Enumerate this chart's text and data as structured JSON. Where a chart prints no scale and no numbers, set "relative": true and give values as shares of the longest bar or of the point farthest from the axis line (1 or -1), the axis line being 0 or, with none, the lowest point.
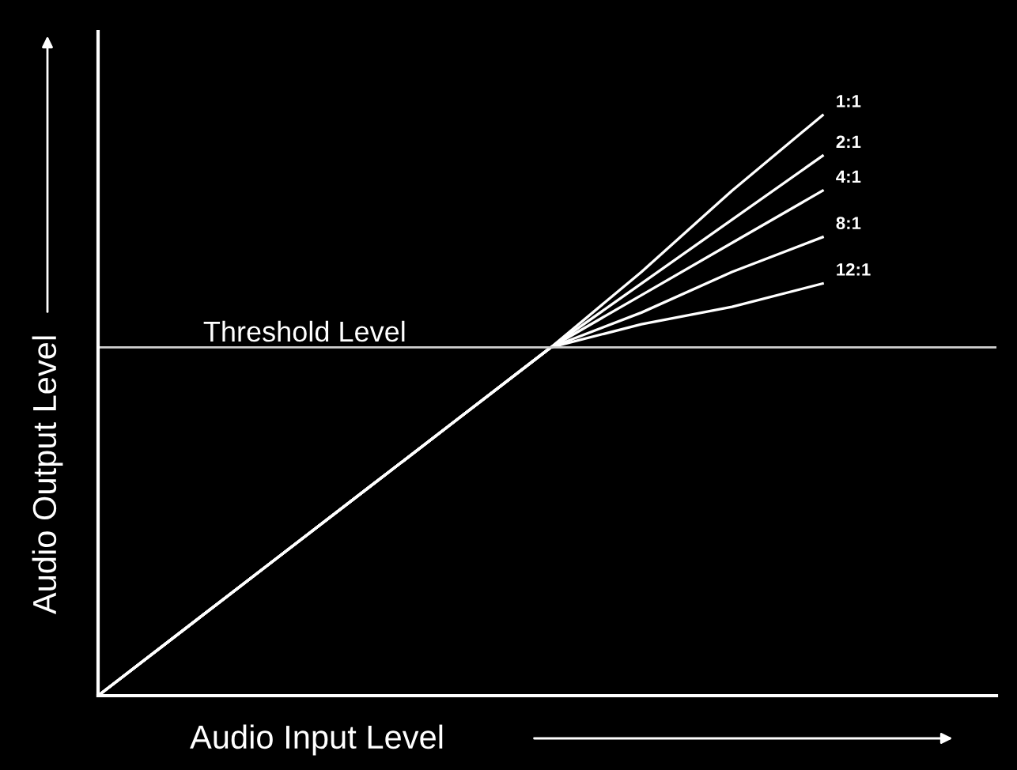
{
  "chart_data": {
    "type": "line",
    "relative": true,
    "xlabel": "Audio Input Level",
    "ylabel": "Audio Output Level",
    "categories": [
      null,
      null,
      null,
      null,
      null,
      null,
      null,
      null,
      null
    ],
    "series": [
      {
        "name": "1:1",
        "color": "#ffffff",
        "values": [
          0,
          0.12,
          0.24,
          0.36,
          0.48,
          0.6,
          0.73,
          0.87,
          1
        ]
      },
      {
        "name": "2:1",
        "color": "#ffffff",
        "values": [
          0,
          0.12,
          0.24,
          0.36,
          0.48,
          0.6,
          0.71,
          0.82,
          0.93
        ]
      },
      {
        "name": "4:1",
        "color": "#ffffff",
        "values": [
          0,
          0.12,
          0.24,
          0.36,
          0.48,
          0.6,
          0.69,
          0.78,
          0.87
        ]
      },
      {
        "name": "8:1",
        "color": "#ffffff",
        "values": [
          0,
          0.12,
          0.24,
          0.36,
          0.48,
          0.6,
          0.66,
          0.73,
          0.79
        ]
      },
      {
        "name": "12:1",
        "color": "#ffffff",
        "values": [
          0,
          0.12,
          0.24,
          0.36,
          0.48,
          0.6,
          0.64,
          0.67,
          0.71
        ]
      }
    ],
    "ref_lines": [
      {
        "axis": "y",
        "value": 0.6,
        "label": "Threshold Level",
        "color": "#d0d0d0"
      }
    ],
    "legend": false,
    "marker": "none",
    "line_style": "solid"
  }
}
